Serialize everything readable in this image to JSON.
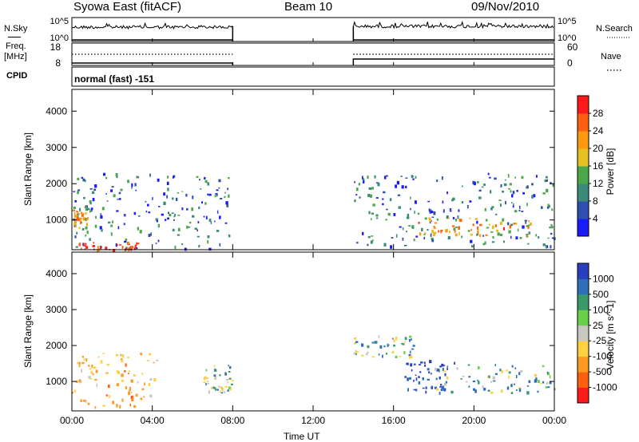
{
  "header": {
    "station": "Syowa East (fitACF)",
    "beam": "Beam 10",
    "date": "09/Nov/2010"
  },
  "top_panels": {
    "nsky_label": "N.Sky",
    "nsearch_label": "N.Search",
    "nsky_ticks": [
      "10^5",
      "10^0"
    ],
    "nsearch_ticks": [
      "10^5",
      "10^0"
    ],
    "freq_label_1": "Freq.",
    "freq_label_2": "[MHz]",
    "freq_ticks": [
      "18",
      "8"
    ],
    "nave_label": "Nave",
    "nave_ticks": [
      "60",
      "0"
    ],
    "cpid_label": "CPID",
    "cpid_value": "normal (fast) -151"
  },
  "chart_data": [
    {
      "type": "heatmap",
      "panel": "power",
      "ylabel": "Slant Range [km]",
      "xlabel": "",
      "x_ticks": [
        "00:00",
        "04:00",
        "08:00",
        "12:00",
        "16:00",
        "20:00",
        "00:00"
      ],
      "x_range_hours": [
        0,
        24
      ],
      "y_ticks": [
        1000,
        2000,
        3000,
        4000
      ],
      "ylim": [
        180,
        4600
      ],
      "colorbar": {
        "label": "Power [dB]",
        "ticks": [
          "4",
          "8",
          "12",
          "16",
          "20",
          "24",
          "28"
        ],
        "range": [
          0,
          30
        ],
        "colors": [
          "#1a1aff",
          "#2f4fb0",
          "#3b8a7a",
          "#4aa84a",
          "#e6c020",
          "#ff9a10",
          "#ff6010",
          "#ff1a1a"
        ]
      },
      "data_gap_hours": [
        8,
        14
      ],
      "echo_regions": [
        {
          "t_start": 0.0,
          "t_end": 8.0,
          "range_min_km": 200,
          "range_max_km": 2300,
          "dominant_power_db": 8
        },
        {
          "t_start": 0.2,
          "t_end": 3.3,
          "range_min_km": 200,
          "range_max_km": 400,
          "dominant_power_db": 28
        },
        {
          "t_start": 0.0,
          "t_end": 0.8,
          "range_min_km": 800,
          "range_max_km": 1300,
          "dominant_power_db": 18
        },
        {
          "t_start": 14.0,
          "t_end": 24.0,
          "range_min_km": 300,
          "range_max_km": 2300,
          "dominant_power_db": 8
        },
        {
          "t_start": 17.0,
          "t_end": 23.0,
          "range_min_km": 600,
          "range_max_km": 1100,
          "dominant_power_db": 20
        }
      ]
    },
    {
      "type": "heatmap",
      "panel": "velocity",
      "ylabel": "Slant Range [km]",
      "xlabel": "Time UT",
      "x_ticks": [
        "00:00",
        "04:00",
        "08:00",
        "12:00",
        "16:00",
        "20:00",
        "00:00"
      ],
      "x_range_hours": [
        0,
        24
      ],
      "y_ticks": [
        1000,
        2000,
        3000,
        4000
      ],
      "ylim": [
        180,
        4600
      ],
      "colorbar": {
        "label": "Velocity [m s^-1]",
        "ticks": [
          "1000",
          "500",
          "100",
          "25",
          "-25",
          "-100",
          "-500",
          "-1000"
        ],
        "colors": [
          "#2a3fc0",
          "#2e6fb8",
          "#3a9a6a",
          "#6ad04a",
          "#c8c8c0",
          "#ffd040",
          "#ff9a20",
          "#ff6010",
          "#ff1a1a"
        ]
      },
      "data_gap_hours": [
        8,
        14
      ],
      "echo_regions": [
        {
          "t_start": 0.0,
          "t_end": 4.2,
          "range_min_km": 300,
          "range_max_km": 1800,
          "dominant_velocity_ms": -300
        },
        {
          "t_start": 6.5,
          "t_end": 8.0,
          "range_min_km": 700,
          "range_max_km": 1500,
          "dominant_velocity_ms": 0
        },
        {
          "t_start": 14.0,
          "t_end": 17.0,
          "range_min_km": 1700,
          "range_max_km": 2300,
          "dominant_velocity_ms": 0
        },
        {
          "t_start": 16.5,
          "t_end": 19.0,
          "range_min_km": 700,
          "range_max_km": 1600,
          "dominant_velocity_ms": 600
        },
        {
          "t_start": 18.0,
          "t_end": 24.0,
          "range_min_km": 700,
          "range_max_km": 1500,
          "dominant_velocity_ms": 100
        }
      ]
    }
  ],
  "colors": {
    "axis": "#000000",
    "background": "#ffffff"
  }
}
